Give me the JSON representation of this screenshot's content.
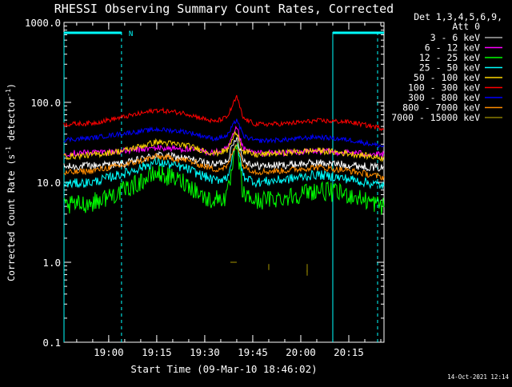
{
  "chart_data": {
    "type": "line",
    "title": "RHESSI Observing Summary Count Rates, Corrected",
    "xlabel": "Start Time (09-Mar-10 18:46:02)",
    "ylabel_main": "Corrected Count Rate (s",
    "ylabel_sup": "-1",
    "ylabel_tail": " detector",
    "ylabel_sup2": "-1",
    "ylabel_close": ")",
    "yscale": "log",
    "xlim": [
      "18:46:02",
      "20:26:00"
    ],
    "ylim": [
      0.1,
      1000
    ],
    "xticks": [
      {
        "t": "19:00",
        "label": "19:00"
      },
      {
        "t": "19:15",
        "label": "19:15"
      },
      {
        "t": "19:30",
        "label": "19:30"
      },
      {
        "t": "19:45",
        "label": "19:45"
      },
      {
        "t": "20:00",
        "label": "20:00"
      },
      {
        "t": "20:15",
        "label": "20:15"
      }
    ],
    "yticks": [
      {
        "v": 0.1,
        "label": "0.1"
      },
      {
        "v": 1,
        "label": "1.0"
      },
      {
        "v": 10,
        "label": "10.0"
      },
      {
        "v": 100,
        "label": "100.0"
      },
      {
        "v": 1000,
        "label": "1000.0"
      }
    ],
    "legend": {
      "header1": "Det 1,3,4,5,6,9,",
      "header2": "Att 0",
      "placement": "right"
    },
    "series": [
      {
        "name": "3 - 6 keV",
        "color": "#000000",
        "render_color": "#ffffff",
        "noise": 0.05,
        "points": [
          [
            "18:46",
            15.5
          ],
          [
            "19:05",
            17
          ],
          [
            "19:15",
            22
          ],
          [
            "19:24",
            20
          ],
          [
            "19:33",
            16.5
          ],
          [
            "19:37",
            19
          ],
          [
            "19:40",
            38
          ],
          [
            "19:42",
            19
          ],
          [
            "19:46",
            16
          ],
          [
            "19:55",
            16.5
          ],
          [
            "20:05",
            17.5
          ],
          [
            "20:15",
            16.5
          ],
          [
            "20:26",
            15
          ]
        ]
      },
      {
        "name": "6 - 12 keV",
        "color": "#ff00ff",
        "noise": 0.04,
        "points": [
          [
            "18:46",
            23
          ],
          [
            "19:05",
            24.5
          ],
          [
            "19:15",
            27
          ],
          [
            "19:24",
            26
          ],
          [
            "19:33",
            23.5
          ],
          [
            "19:37",
            26
          ],
          [
            "19:40",
            48
          ],
          [
            "19:42",
            26
          ],
          [
            "19:46",
            23
          ],
          [
            "19:55",
            23.5
          ],
          [
            "20:05",
            24.5
          ],
          [
            "20:15",
            23.5
          ],
          [
            "20:26",
            22
          ]
        ]
      },
      {
        "name": "12 - 25 keV",
        "color": "#00ff00",
        "noise": 0.12,
        "points": [
          [
            "18:46",
            5
          ],
          [
            "18:55",
            5.6
          ],
          [
            "19:05",
            8
          ],
          [
            "19:15",
            13
          ],
          [
            "19:24",
            10
          ],
          [
            "19:31",
            6
          ],
          [
            "19:37",
            6.5
          ],
          [
            "19:40",
            29
          ],
          [
            "19:42",
            7
          ],
          [
            "19:46",
            5.8
          ],
          [
            "19:55",
            6.5
          ],
          [
            "20:05",
            8
          ],
          [
            "20:15",
            7
          ],
          [
            "20:26",
            5
          ]
        ]
      },
      {
        "name": "25 - 50 keV",
        "color": "#00ffff",
        "noise": 0.06,
        "points": [
          [
            "18:46",
            9.5
          ],
          [
            "18:55",
            10
          ],
          [
            "19:05",
            13
          ],
          [
            "19:15",
            18
          ],
          [
            "19:24",
            15
          ],
          [
            "19:33",
            10.5
          ],
          [
            "19:37",
            11.5
          ],
          [
            "19:40",
            32
          ],
          [
            "19:42",
            12
          ],
          [
            "19:46",
            10
          ],
          [
            "19:55",
            10.8
          ],
          [
            "20:05",
            12.5
          ],
          [
            "20:15",
            11
          ],
          [
            "20:26",
            9
          ]
        ]
      },
      {
        "name": "50 - 100 keV",
        "color": "#ffd700",
        "noise": 0.04,
        "points": [
          [
            "18:46",
            21
          ],
          [
            "18:55",
            22
          ],
          [
            "19:05",
            25
          ],
          [
            "19:15",
            32
          ],
          [
            "19:24",
            29
          ],
          [
            "19:33",
            23
          ],
          [
            "19:37",
            25
          ],
          [
            "19:40",
            44
          ],
          [
            "19:42",
            24
          ],
          [
            "19:46",
            22
          ],
          [
            "19:55",
            23.5
          ],
          [
            "20:05",
            25
          ],
          [
            "20:15",
            23
          ],
          [
            "20:26",
            20
          ]
        ]
      },
      {
        "name": "100 - 300 keV",
        "color": "#ff0000",
        "noise": 0.03,
        "points": [
          [
            "18:46",
            53
          ],
          [
            "18:55",
            55
          ],
          [
            "19:05",
            66
          ],
          [
            "19:15",
            80
          ],
          [
            "19:24",
            73
          ],
          [
            "19:33",
            57
          ],
          [
            "19:37",
            65
          ],
          [
            "19:40",
            118
          ],
          [
            "19:42",
            63
          ],
          [
            "19:46",
            53
          ],
          [
            "19:55",
            54
          ],
          [
            "20:05",
            59
          ],
          [
            "20:15",
            57
          ],
          [
            "20:26",
            47
          ]
        ]
      },
      {
        "name": "300 - 800 keV",
        "color": "#0000ff",
        "render_color": "#0000ff",
        "noise": 0.03,
        "points": [
          [
            "18:46",
            34
          ],
          [
            "18:55",
            36
          ],
          [
            "19:05",
            41
          ],
          [
            "19:15",
            46
          ],
          [
            "19:24",
            43
          ],
          [
            "19:33",
            35
          ],
          [
            "19:37",
            38
          ],
          [
            "19:40",
            62
          ],
          [
            "19:42",
            38
          ],
          [
            "19:46",
            33
          ],
          [
            "19:55",
            34
          ],
          [
            "20:05",
            37
          ],
          [
            "20:15",
            34
          ],
          [
            "20:26",
            28
          ]
        ]
      },
      {
        "name": "800 - 7000 keV",
        "color": "#ff8c00",
        "noise": 0.04,
        "points": [
          [
            "18:46",
            13
          ],
          [
            "18:55",
            14
          ],
          [
            "19:05",
            16.5
          ],
          [
            "19:15",
            21
          ],
          [
            "19:24",
            19
          ],
          [
            "19:33",
            14.5
          ],
          [
            "19:37",
            15.5
          ],
          [
            "19:40",
            32
          ],
          [
            "19:42",
            16
          ],
          [
            "19:46",
            13.5
          ],
          [
            "19:55",
            14
          ],
          [
            "20:05",
            15.5
          ],
          [
            "20:15",
            14
          ],
          [
            "20:26",
            11.5
          ]
        ]
      },
      {
        "name": "7000 - 15000 keV",
        "color": "#8b7d00",
        "noise": 0,
        "segments": [
          [
            [
              "19:38",
              1.0
            ],
            [
              "19:40",
              1.0
            ]
          ],
          [
            [
              "19:50",
              0.95
            ],
            [
              "19:50",
              0.8
            ]
          ],
          [
            [
              "20:02",
              0.95
            ],
            [
              "20:02",
              0.75
            ]
          ],
          [
            [
              "20:02",
              0.8
            ],
            [
              "20:02",
              0.68
            ]
          ]
        ]
      }
    ],
    "markers": {
      "attenuator_bar": [
        {
          "start": "18:46:02",
          "end": "19:04"
        },
        {
          "start": "20:10",
          "end": "20:26"
        }
      ],
      "night_lines": [
        "18:46:02",
        "19:04",
        "20:10",
        "20:24"
      ],
      "night_solid": [
        "18:46:02",
        "20:10"
      ],
      "night_dashed": [
        "19:04",
        "20:24"
      ],
      "label": "N",
      "label_at": "19:06"
    },
    "timestamp": "14-Oct-2021 12:14"
  }
}
